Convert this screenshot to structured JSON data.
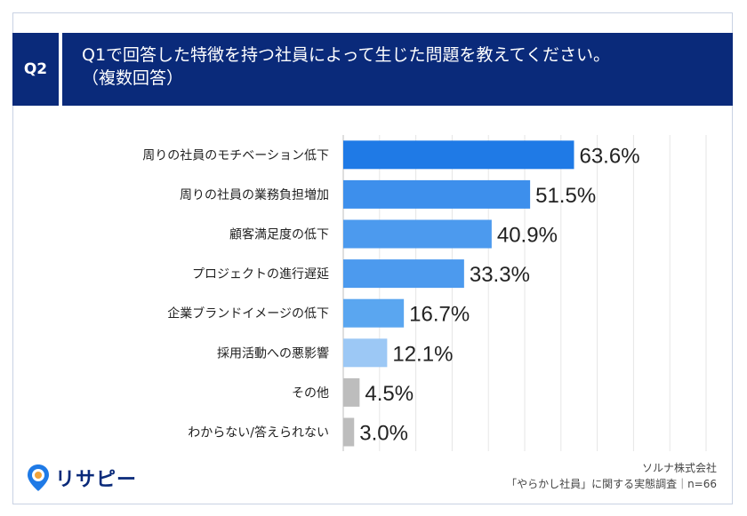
{
  "badge": "Q2",
  "title_line1": "Q1で回答した特徴を持つ社員によって生じた問題を教えてください。",
  "title_line2": "（複数回答）",
  "logo_text": "リサピー",
  "source_line1": "ソルナ株式会社",
  "source_line2": "「やらかし社員」に関する実態調査｜n=66",
  "colors": {
    "header_bg": "#0a2a7a",
    "bar_main": "#1f7ae6",
    "bar_light": "#5aa6f0",
    "bar_lighter": "#9cc8f5",
    "bar_gray": "#bdbdbd",
    "logo_pin": "#1f7ae6",
    "logo_dot": "#f2a33a"
  },
  "chart_data": {
    "type": "bar",
    "orientation": "horizontal",
    "categories": [
      "周りの社員のモチベーション低下",
      "周りの社員の業務負担増加",
      "顧客満足度の低下",
      "プロジェクトの進行遅延",
      "企業ブランドイメージの低下",
      "採用活動への悪影響",
      "その他",
      "わからない/答えられない"
    ],
    "values": [
      63.6,
      51.5,
      40.9,
      33.3,
      16.7,
      12.1,
      4.5,
      3.0
    ],
    "value_labels": [
      "63.6%",
      "51.5%",
      "40.9%",
      "33.3%",
      "16.7%",
      "12.1%",
      "4.5%",
      "3.0%"
    ],
    "bar_colors": [
      "#1f7ae6",
      "#3d8fec",
      "#4c9aee",
      "#4c9aee",
      "#5aa6f0",
      "#9cc8f5",
      "#bdbdbd",
      "#bdbdbd"
    ],
    "xlim": [
      0,
      100
    ],
    "grid": true
  }
}
